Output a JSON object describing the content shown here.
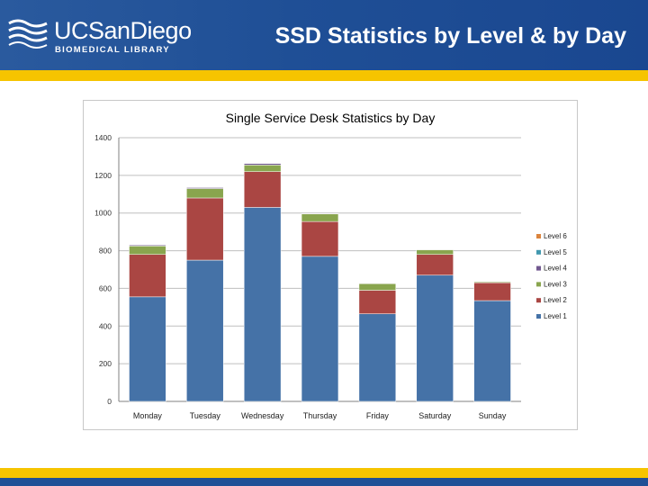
{
  "header": {
    "logo_name": "UCSanDiego",
    "logo_subtitle": "BIOMEDICAL LIBRARY",
    "slide_title": "SSD Statistics by Level & by Day",
    "brand_blue": "#1f4f96",
    "accent_gold": "#f6c400"
  },
  "chart_data": {
    "type": "bar",
    "stacked": true,
    "title": "Single Service Desk Statistics by Day",
    "xlabel": "",
    "ylabel": "",
    "categories": [
      "Monday",
      "Tuesday",
      "Wednesday",
      "Thursday",
      "Friday",
      "Saturday",
      "Sunday"
    ],
    "ylim": [
      0,
      1400
    ],
    "yticks": [
      0,
      200,
      400,
      600,
      800,
      1000,
      1200,
      1400
    ],
    "grid": true,
    "legend_position": "right",
    "series": [
      {
        "name": "Level 1",
        "color": "#4572a7",
        "values": [
          555,
          750,
          1030,
          770,
          465,
          670,
          535
        ]
      },
      {
        "name": "Level 2",
        "color": "#aa4643",
        "values": [
          225,
          330,
          190,
          185,
          125,
          110,
          95
        ]
      },
      {
        "name": "Level 3",
        "color": "#89a54e",
        "values": [
          45,
          50,
          35,
          40,
          35,
          25,
          5
        ]
      },
      {
        "name": "Level 4",
        "color": "#71588f",
        "values": [
          5,
          5,
          8,
          2,
          2,
          2,
          0
        ]
      },
      {
        "name": "Level 5",
        "color": "#4198af",
        "values": [
          0,
          0,
          0,
          0,
          0,
          0,
          0
        ]
      },
      {
        "name": "Level 6",
        "color": "#db843d",
        "values": [
          0,
          0,
          0,
          0,
          0,
          0,
          0
        ]
      }
    ]
  }
}
